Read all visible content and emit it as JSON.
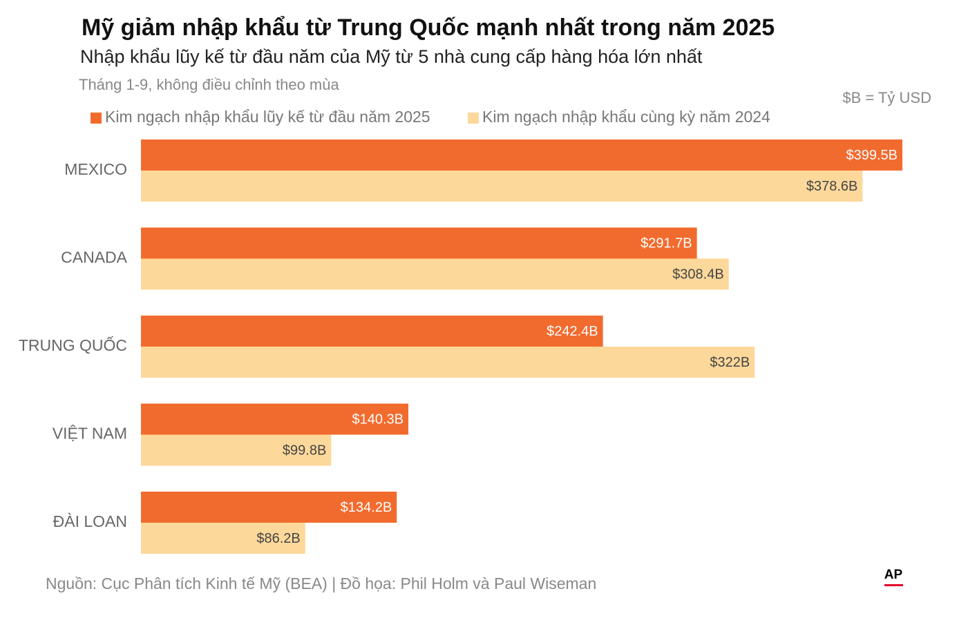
{
  "chart_data": {
    "type": "bar",
    "orientation": "horizontal",
    "title": "Mỹ giảm nhập khẩu từ Trung Quốc mạnh nhất trong năm 2025",
    "subtitle": "Nhập khẩu lũy kế từ đầu năm của Mỹ từ 5 nhà cung cấp hàng hóa lớn nhất",
    "note": "Tháng 1-9, không điều chỉnh theo mùa",
    "unit_note": "$B = Tỷ USD",
    "source": "Nguồn: Cục Phân tích Kinh tế Mỹ (BEA) | Đồ họa: Phil Holm và Paul Wiseman",
    "logo": "AP",
    "categories": [
      "MEXICO",
      "CANADA",
      "TRUNG QUỐC",
      "VIỆT NAM",
      "ĐÀI LOAN"
    ],
    "series": [
      {
        "name": "Kim ngạch nhập khẩu lũy kế từ đầu năm 2025",
        "color": "#f26b2e",
        "values": [
          399.5,
          291.7,
          242.4,
          140.3,
          134.2
        ],
        "value_labels": [
          "$399.5B",
          "$291.7B",
          "$242.4B",
          "$140.3B",
          "$134.2B"
        ]
      },
      {
        "name": "Kim ngạch nhập khẩu cùng kỳ năm 2024",
        "color": "#fdd89b",
        "values": [
          378.6,
          308.4,
          322,
          99.8,
          86.2
        ],
        "value_labels": [
          "$378.6B",
          "$308.4B",
          "$322B",
          "$99.8B",
          "$86.2B"
        ]
      }
    ]
  }
}
